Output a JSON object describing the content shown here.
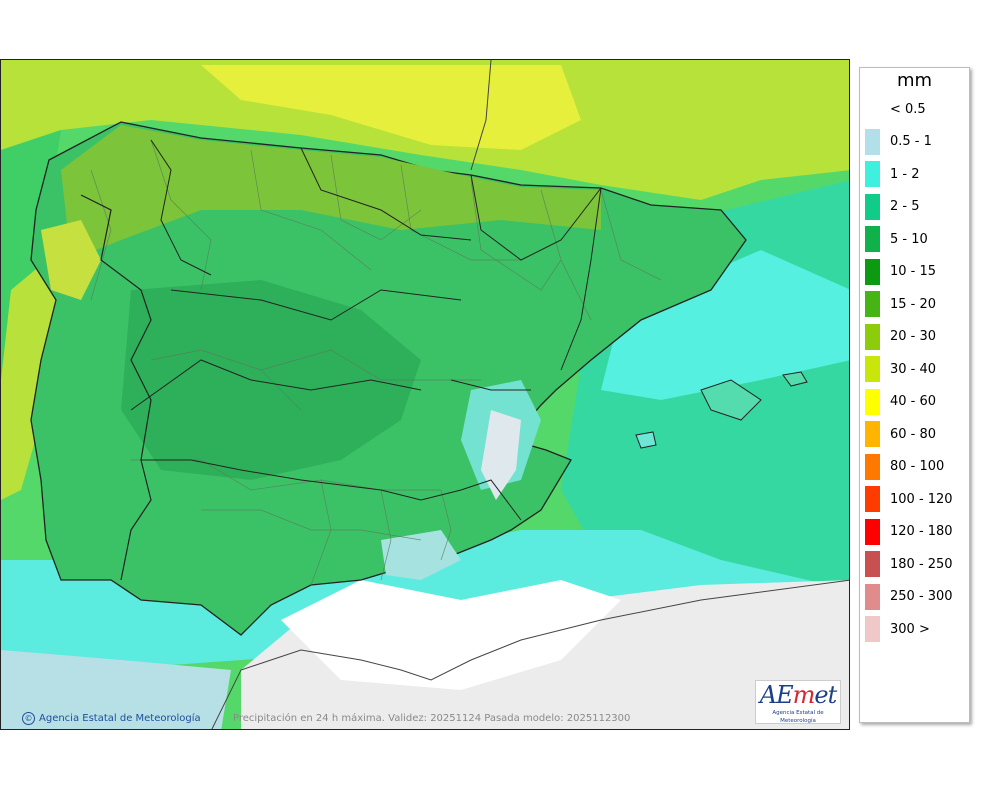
{
  "map": {
    "credit": "Agencia Estatal de Meteorología",
    "caption": "Precipitación en 24 h máxima. Validez: 20251124 Pasada modelo: 2025112300",
    "logo": {
      "brand_a": "AE",
      "brand_m": "m",
      "brand_b": "et",
      "subtitle": "Agencia Estatal de Meteorología"
    }
  },
  "legend": {
    "unit": "mm",
    "items": [
      {
        "label": "< 0.5",
        "color": "#ffffff"
      },
      {
        "label": "0.5 - 1",
        "color": "#b3e0e8"
      },
      {
        "label": "1 - 2",
        "color": "#3ff0de"
      },
      {
        "label": "2 - 5",
        "color": "#11cc88"
      },
      {
        "label": "5 - 10",
        "color": "#10b04a"
      },
      {
        "label": "10 - 15",
        "color": "#0c9a13"
      },
      {
        "label": "15 - 20",
        "color": "#46b414"
      },
      {
        "label": "20 - 30",
        "color": "#8ccc0a"
      },
      {
        "label": "30 - 40",
        "color": "#c8e60a"
      },
      {
        "label": "40 - 60",
        "color": "#ffff00"
      },
      {
        "label": "60 - 80",
        "color": "#ffb400"
      },
      {
        "label": "80 - 100",
        "color": "#ff7800"
      },
      {
        "label": "100 - 120",
        "color": "#ff3c00"
      },
      {
        "label": "120 - 180",
        "color": "#ff0000"
      },
      {
        "label": "180 - 250",
        "color": "#c85050"
      },
      {
        "label": "250 - 300",
        "color": "#e08c8c"
      },
      {
        "label": "300 >",
        "color": "#f0c8c8"
      }
    ]
  },
  "colors": {
    "sea_far": "#4fe0b0",
    "lowland": "#2ed08a",
    "north_band": "#8ccc30",
    "yellow": "#e2ee3a",
    "dry": "#ffffff",
    "africa": "#ececec",
    "border": "#222222"
  }
}
